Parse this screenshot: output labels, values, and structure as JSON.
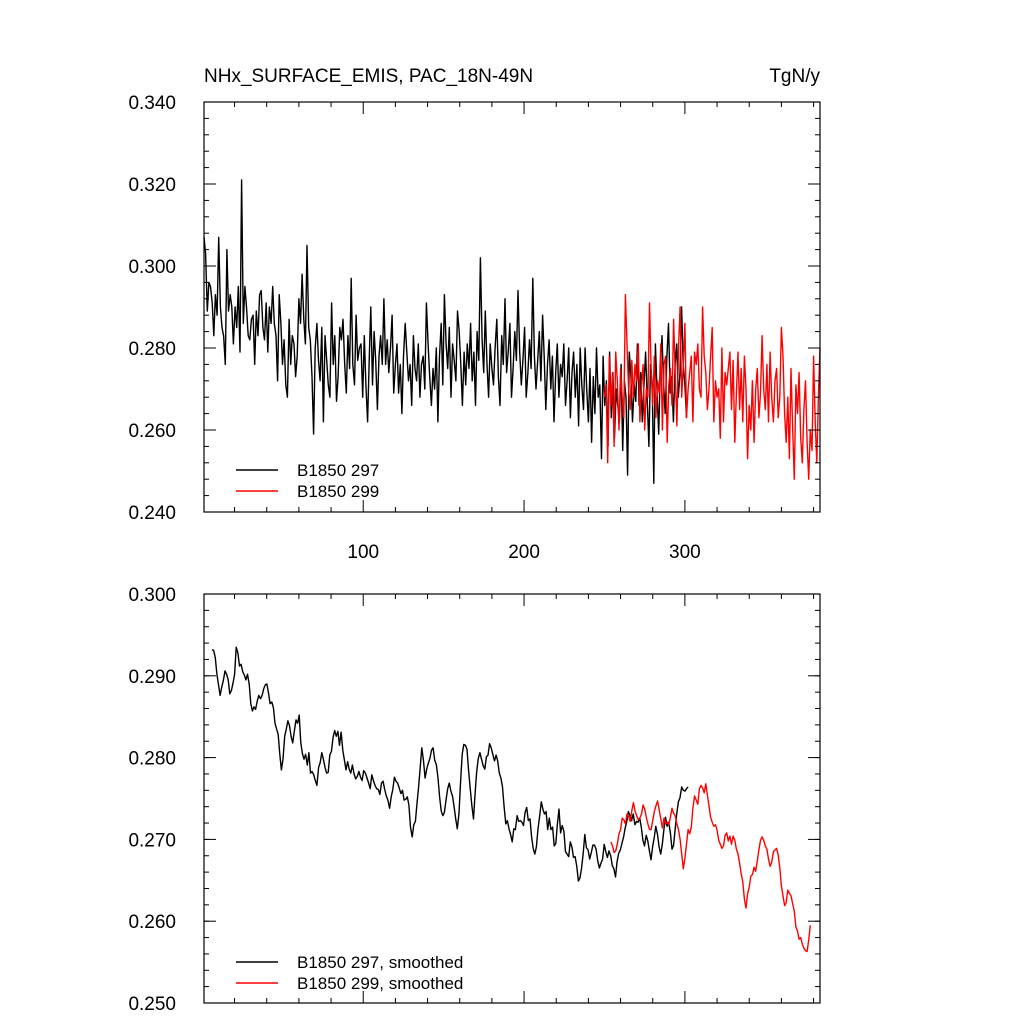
{
  "colors": {
    "run_297": "#000000",
    "run_299": "#ff0000",
    "axis": "#000000"
  },
  "chart_data": [
    {
      "type": "line",
      "title": "NHx_SURFACE_EMIS, PAC_18N-49N",
      "units": "TgN/y",
      "xlabel": "",
      "ylabel": "",
      "xlim": [
        1,
        384
      ],
      "ylim": [
        0.24,
        0.34
      ],
      "grid": false,
      "legend_position": "bottom-left",
      "ytick_labels": [
        "0.240",
        "0.260",
        "0.280",
        "0.300",
        "0.320",
        "0.340"
      ],
      "xtick_labels": [
        "100",
        "200",
        "300"
      ],
      "series": [
        {
          "name": "B1850 297",
          "color": "#000000",
          "x_start": 1,
          "x_end": 301,
          "values": [
            0.307,
            0.303,
            0.289,
            0.296,
            0.295,
            0.291,
            0.283,
            0.293,
            0.288,
            0.307,
            0.29,
            0.285,
            0.283,
            0.276,
            0.304,
            0.289,
            0.293,
            0.29,
            0.281,
            0.29,
            0.285,
            0.295,
            0.279,
            0.321,
            0.286,
            0.295,
            0.29,
            0.283,
            0.282,
            0.287,
            0.288,
            0.276,
            0.289,
            0.283,
            0.293,
            0.294,
            0.285,
            0.282,
            0.291,
            0.279,
            0.29,
            0.286,
            0.295,
            0.286,
            0.283,
            0.272,
            0.293,
            0.286,
            0.276,
            0.282,
            0.271,
            0.268,
            0.287,
            0.276,
            0.283,
            0.281,
            0.273,
            0.278,
            0.292,
            0.286,
            0.298,
            0.287,
            0.281,
            0.305,
            0.285,
            0.282,
            0.273,
            0.259,
            0.28,
            0.286,
            0.277,
            0.272,
            0.285,
            0.262,
            0.283,
            0.277,
            0.271,
            0.268,
            0.291,
            0.276,
            0.283,
            0.267,
            0.273,
            0.285,
            0.282,
            0.287,
            0.276,
            0.269,
            0.283,
            0.275,
            0.297,
            0.276,
            0.271,
            0.288,
            0.277,
            0.28,
            0.281,
            0.268,
            0.283,
            0.271,
            0.262,
            0.277,
            0.29,
            0.271,
            0.284,
            0.277,
            0.265,
            0.278,
            0.283,
            0.276,
            0.292,
            0.276,
            0.282,
            0.274,
            0.28,
            0.288,
            0.269,
            0.276,
            0.281,
            0.269,
            0.276,
            0.264,
            0.278,
            0.286,
            0.279,
            0.272,
            0.276,
            0.266,
            0.283,
            0.275,
            0.272,
            0.281,
            0.268,
            0.276,
            0.278,
            0.27,
            0.291,
            0.281,
            0.273,
            0.266,
            0.275,
            0.27,
            0.28,
            0.262,
            0.278,
            0.286,
            0.271,
            0.293,
            0.281,
            0.275,
            0.285,
            0.268,
            0.281,
            0.277,
            0.272,
            0.289,
            0.284,
            0.276,
            0.266,
            0.279,
            0.271,
            0.281,
            0.275,
            0.286,
            0.272,
            0.279,
            0.266,
            0.284,
            0.277,
            0.302,
            0.282,
            0.274,
            0.289,
            0.276,
            0.268,
            0.281,
            0.275,
            0.271,
            0.28,
            0.287,
            0.273,
            0.266,
            0.283,
            0.276,
            0.292,
            0.274,
            0.279,
            0.286,
            0.268,
            0.275,
            0.284,
            0.277,
            0.294,
            0.279,
            0.271,
            0.277,
            0.285,
            0.268,
            0.274,
            0.282,
            0.275,
            0.297,
            0.278,
            0.27,
            0.277,
            0.284,
            0.272,
            0.288,
            0.278,
            0.265,
            0.276,
            0.282,
            0.27,
            0.278,
            0.262,
            0.274,
            0.281,
            0.268,
            0.276,
            0.273,
            0.281,
            0.266,
            0.272,
            0.28,
            0.263,
            0.274,
            0.279,
            0.268,
            0.276,
            0.261,
            0.28,
            0.271,
            0.265,
            0.28,
            0.27,
            0.262,
            0.275,
            0.257,
            0.273,
            0.264,
            0.28,
            0.268,
            0.271,
            0.253,
            0.278,
            0.266,
            0.272,
            0.256,
            0.279,
            0.263,
            0.274,
            0.258,
            0.27,
            0.266,
            0.262,
            0.276,
            0.255,
            0.272,
            0.268,
            0.249,
            0.279,
            0.273,
            0.262,
            0.271,
            0.267,
            0.281,
            0.266,
            0.274,
            0.262,
            0.271,
            0.279,
            0.267,
            0.256,
            0.276,
            0.271,
            0.247,
            0.281,
            0.269,
            0.259,
            0.275,
            0.283,
            0.271,
            0.264,
            0.278,
            0.286,
            0.269,
            0.273,
            0.262,
            0.276,
            0.281,
            0.268,
            0.274,
            0.29,
            0.276,
            0.271,
            0.263
          ]
        },
        {
          "name": "B1850 299",
          "color": "#ff0000",
          "x_start": 250,
          "x_end": 384,
          "values": [
            0.268,
            0.271,
            0.252,
            0.278,
            0.266,
            0.274,
            0.256,
            0.279,
            0.272,
            0.26,
            0.275,
            0.268,
            0.263,
            0.293,
            0.281,
            0.27,
            0.265,
            0.277,
            0.268,
            0.276,
            0.272,
            0.281,
            0.262,
            0.271,
            0.276,
            0.26,
            0.27,
            0.268,
            0.291,
            0.275,
            0.266,
            0.278,
            0.263,
            0.272,
            0.269,
            0.281,
            0.26,
            0.276,
            0.278,
            0.257,
            0.271,
            0.275,
            0.266,
            0.287,
            0.274,
            0.261,
            0.28,
            0.29,
            0.268,
            0.276,
            0.286,
            0.263,
            0.27,
            0.274,
            0.278,
            0.262,
            0.279,
            0.276,
            0.281,
            0.27,
            0.268,
            0.29,
            0.278,
            0.274,
            0.265,
            0.27,
            0.278,
            0.285,
            0.262,
            0.272,
            0.268,
            0.27,
            0.258,
            0.28,
            0.262,
            0.274,
            0.271,
            0.275,
            0.279,
            0.265,
            0.277,
            0.257,
            0.269,
            0.279,
            0.265,
            0.275,
            0.262,
            0.278,
            0.27,
            0.253,
            0.266,
            0.26,
            0.272,
            0.257,
            0.27,
            0.275,
            0.263,
            0.269,
            0.283,
            0.27,
            0.265,
            0.276,
            0.262,
            0.279,
            0.268,
            0.262,
            0.272,
            0.275,
            0.263,
            0.268,
            0.285,
            0.278,
            0.264,
            0.257,
            0.268,
            0.253,
            0.275,
            0.26,
            0.248,
            0.271,
            0.264,
            0.274,
            0.258,
            0.252,
            0.265,
            0.272,
            0.257,
            0.248,
            0.26,
            0.255,
            0.278,
            0.262,
            0.252,
            0.268,
            0.28
          ]
        }
      ]
    },
    {
      "type": "line",
      "title": "",
      "xlabel": "",
      "ylabel": "",
      "xlim": [
        1,
        384
      ],
      "ylim": [
        0.25,
        0.3
      ],
      "grid": false,
      "legend_position": "bottom-left",
      "ytick_labels": [
        "0.250",
        "0.260",
        "0.270",
        "0.280",
        "0.290",
        "0.300"
      ],
      "xtick_labels": [],
      "series": [
        {
          "name": "B1850 297, smoothed",
          "color": "#000000",
          "x_start": 6,
          "x_end": 302,
          "values": [
            0.2932,
            0.2931,
            0.2922,
            0.2902,
            0.2889,
            0.2876,
            0.2886,
            0.2894,
            0.2906,
            0.2902,
            0.2895,
            0.2878,
            0.2882,
            0.2891,
            0.2902,
            0.2935,
            0.2928,
            0.2912,
            0.2914,
            0.2905,
            0.2901,
            0.2895,
            0.2902,
            0.289,
            0.2866,
            0.2857,
            0.2862,
            0.2859,
            0.2869,
            0.2876,
            0.2872,
            0.2876,
            0.2884,
            0.2889,
            0.289,
            0.2879,
            0.2866,
            0.2868,
            0.2861,
            0.2842,
            0.2835,
            0.2828,
            0.2804,
            0.2785,
            0.2798,
            0.2826,
            0.2835,
            0.2845,
            0.2839,
            0.2826,
            0.2818,
            0.2832,
            0.2846,
            0.2842,
            0.2852,
            0.2818,
            0.2805,
            0.2798,
            0.2804,
            0.2791,
            0.2806,
            0.2781,
            0.2783,
            0.2779,
            0.2772,
            0.2766,
            0.2788,
            0.2794,
            0.2806,
            0.2798,
            0.2788,
            0.2781,
            0.2782,
            0.2803,
            0.2808,
            0.2825,
            0.2833,
            0.2826,
            0.2832,
            0.2815,
            0.2831,
            0.2809,
            0.2797,
            0.2785,
            0.2795,
            0.2786,
            0.2781,
            0.2791,
            0.278,
            0.2774,
            0.2777,
            0.2783,
            0.2776,
            0.2772,
            0.2784,
            0.2781,
            0.2775,
            0.2769,
            0.2762,
            0.2779,
            0.2772,
            0.2766,
            0.2762,
            0.2761,
            0.2755,
            0.2769,
            0.2771,
            0.2761,
            0.2753,
            0.2748,
            0.2738,
            0.2752,
            0.2761,
            0.2776,
            0.2771,
            0.2769,
            0.2763,
            0.2756,
            0.276,
            0.2748,
            0.2749,
            0.2752,
            0.2742,
            0.2715,
            0.2703,
            0.2718,
            0.2722,
            0.2744,
            0.2764,
            0.2788,
            0.2812,
            0.2796,
            0.2775,
            0.2786,
            0.2793,
            0.2799,
            0.2809,
            0.2812,
            0.2797,
            0.2791,
            0.2775,
            0.2752,
            0.2735,
            0.2729,
            0.2733,
            0.2748,
            0.2762,
            0.2769,
            0.2759,
            0.2753,
            0.274,
            0.2725,
            0.2713,
            0.2732,
            0.2771,
            0.2804,
            0.2816,
            0.2815,
            0.281,
            0.2784,
            0.2761,
            0.2741,
            0.2725,
            0.2756,
            0.2783,
            0.2799,
            0.2806,
            0.2798,
            0.279,
            0.2786,
            0.2801,
            0.2803,
            0.2817,
            0.2812,
            0.2804,
            0.2796,
            0.2803,
            0.2796,
            0.2781,
            0.2775,
            0.2764,
            0.274,
            0.2719,
            0.2723,
            0.2713,
            0.2706,
            0.2697,
            0.2713,
            0.2712,
            0.2729,
            0.2722,
            0.2723,
            0.2721,
            0.2717,
            0.2733,
            0.2739,
            0.2723,
            0.2725,
            0.2703,
            0.2689,
            0.2682,
            0.2691,
            0.2713,
            0.2728,
            0.2746,
            0.2737,
            0.2731,
            0.2734,
            0.2712,
            0.2726,
            0.2712,
            0.2715,
            0.2692,
            0.2695,
            0.2719,
            0.2737,
            0.2708,
            0.2717,
            0.271,
            0.2685,
            0.2682,
            0.2679,
            0.2697,
            0.2691,
            0.2678,
            0.2679,
            0.2667,
            0.2649,
            0.2653,
            0.2665,
            0.2683,
            0.2706,
            0.269,
            0.2687,
            0.2676,
            0.2684,
            0.2693,
            0.2693,
            0.2688,
            0.2674,
            0.2665,
            0.2671,
            0.2676,
            0.2694,
            0.2685,
            0.2678,
            0.2686,
            0.268,
            0.2668,
            0.2664,
            0.2654,
            0.2673,
            0.2683,
            0.2687,
            0.2695,
            0.2703,
            0.2714,
            0.2722,
            0.2734,
            0.2729,
            0.2723,
            0.2731,
            0.2718,
            0.2722,
            0.2721,
            0.2726,
            0.2715,
            0.2699,
            0.2692,
            0.2705,
            0.2698,
            0.2686,
            0.2675,
            0.2691,
            0.2702,
            0.2716,
            0.2706,
            0.2691,
            0.2682,
            0.2694,
            0.2712,
            0.2727,
            0.2716,
            0.2721,
            0.2708,
            0.2688,
            0.2693,
            0.2713,
            0.2732,
            0.2746,
            0.2751,
            0.2764,
            0.276,
            0.2759,
            0.2762,
            0.2764
          ]
        },
        {
          "name": "B1850 299, smoothed",
          "color": "#ff0000",
          "x_start": 254,
          "x_end": 378,
          "values": [
            0.2697,
            0.2692,
            0.2684,
            0.2686,
            0.2694,
            0.2707,
            0.2712,
            0.2726,
            0.2724,
            0.2719,
            0.2731,
            0.2728,
            0.2722,
            0.2735,
            0.2745,
            0.2735,
            0.2729,
            0.2724,
            0.2726,
            0.2731,
            0.2742,
            0.2737,
            0.2727,
            0.2719,
            0.2712,
            0.2712,
            0.2723,
            0.2734,
            0.2741,
            0.2747,
            0.2736,
            0.2725,
            0.2714,
            0.2726,
            0.2719,
            0.2721,
            0.2718,
            0.2727,
            0.2738,
            0.2732,
            0.2729,
            0.2719,
            0.2712,
            0.27,
            0.2682,
            0.2664,
            0.2677,
            0.2694,
            0.2712,
            0.2707,
            0.2715,
            0.2738,
            0.2753,
            0.2748,
            0.2743,
            0.2762,
            0.2766,
            0.2763,
            0.2757,
            0.2768,
            0.2754,
            0.2741,
            0.2727,
            0.2721,
            0.2716,
            0.2718,
            0.2711,
            0.2699,
            0.2694,
            0.2689,
            0.2692,
            0.2705,
            0.2708,
            0.2698,
            0.2704,
            0.2694,
            0.2704,
            0.2699,
            0.2688,
            0.2682,
            0.2671,
            0.2658,
            0.2648,
            0.2627,
            0.2616,
            0.2634,
            0.2641,
            0.2655,
            0.2657,
            0.2666,
            0.2661,
            0.2674,
            0.2687,
            0.2699,
            0.2703,
            0.2699,
            0.2692,
            0.2688,
            0.2676,
            0.2667,
            0.2672,
            0.2685,
            0.2687,
            0.2689,
            0.2681,
            0.2665,
            0.2643,
            0.2631,
            0.2619,
            0.2623,
            0.2638,
            0.2634,
            0.2631,
            0.2621,
            0.2612,
            0.2593,
            0.2588,
            0.2578,
            0.258,
            0.2572,
            0.2567,
            0.2564,
            0.2563,
            0.2577,
            0.2595
          ]
        }
      ]
    }
  ]
}
